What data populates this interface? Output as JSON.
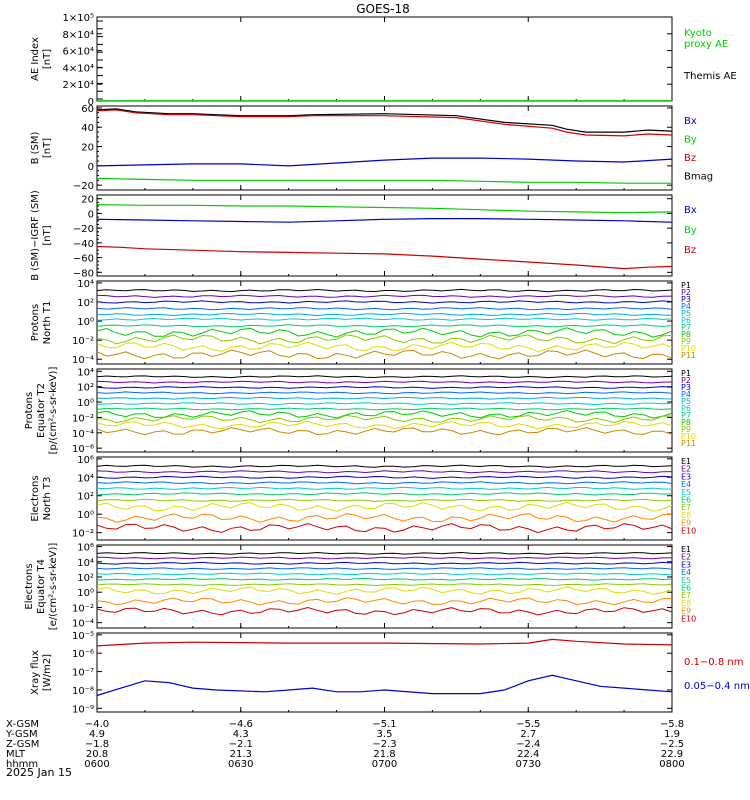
{
  "title": "GOES-18",
  "date_label": "2025 Jan 15",
  "chart_data": [
    {
      "id": "ae",
      "type": "line",
      "ylabel": [
        "AE Index",
        "[nT]"
      ],
      "yticks": [
        "1×10⁵",
        "8×10⁴",
        "6×10⁴",
        "4×10⁴",
        "2×10⁴",
        "0"
      ],
      "ylim": [
        0,
        100000
      ],
      "scale": "linear",
      "legend": [
        {
          "name": "Kyoto",
          "color": "#00cc00"
        },
        {
          "name": "proxy AE",
          "color": "#00cc00"
        },
        {
          "name": "Themis AE",
          "color": "#000000"
        }
      ],
      "series": [
        {
          "name": "Kyoto proxy AE",
          "color": "#00cc00",
          "x": [
            0,
            120
          ],
          "y": [
            300,
            300
          ]
        }
      ]
    },
    {
      "id": "bsm",
      "type": "line",
      "ylabel": [
        "B (SM)",
        "[nT]"
      ],
      "yticks": [
        "60",
        "40",
        "20",
        "0",
        "−20"
      ],
      "ytick_values": [
        60,
        40,
        20,
        0,
        -20
      ],
      "ylim": [
        -25,
        62
      ],
      "scale": "linear",
      "legend": [
        {
          "name": "Bx",
          "color": "#0000cc"
        },
        {
          "name": "By",
          "color": "#00cc00"
        },
        {
          "name": "Bz",
          "color": "#cc0000"
        },
        {
          "name": "Bmag",
          "color": "#000000"
        }
      ],
      "series": [
        {
          "name": "Bmag",
          "color": "#000000",
          "x": [
            0,
            4,
            8,
            15,
            20,
            30,
            40,
            45,
            60,
            75,
            85,
            95,
            98,
            102,
            110,
            115,
            120
          ],
          "y": [
            58,
            59,
            56,
            54,
            54,
            52,
            52,
            53,
            54,
            52,
            45,
            42,
            38,
            35,
            35,
            37,
            36
          ]
        },
        {
          "name": "Bz",
          "color": "#cc0000",
          "x": [
            0,
            4,
            8,
            15,
            20,
            30,
            40,
            45,
            60,
            75,
            85,
            95,
            98,
            102,
            110,
            115,
            120
          ],
          "y": [
            57,
            58,
            55,
            53,
            53,
            51,
            51,
            52,
            52,
            50,
            43,
            39,
            35,
            32,
            31,
            33,
            32
          ]
        },
        {
          "name": "Bx",
          "color": "#0000cc",
          "x": [
            0,
            10,
            20,
            30,
            40,
            50,
            60,
            70,
            80,
            90,
            100,
            110,
            120
          ],
          "y": [
            0,
            1,
            2,
            2,
            0,
            3,
            6,
            8,
            8,
            7,
            5,
            4,
            7
          ]
        },
        {
          "name": "By",
          "color": "#00cc00",
          "x": [
            0,
            10,
            20,
            30,
            40,
            50,
            60,
            70,
            80,
            90,
            100,
            110,
            120
          ],
          "y": [
            -13,
            -14,
            -15,
            -15,
            -15,
            -15,
            -15,
            -15,
            -16,
            -17,
            -17,
            -18,
            -18
          ]
        }
      ]
    },
    {
      "id": "bigrf",
      "type": "line",
      "ylabel": [
        "B (SM)−IGRF (SM)",
        "[nT]"
      ],
      "yticks": [
        "20",
        "0",
        "−20",
        "−40",
        "−60",
        "−80"
      ],
      "ytick_values": [
        20,
        0,
        -20,
        -40,
        -60,
        -80
      ],
      "ylim": [
        -85,
        25
      ],
      "scale": "linear",
      "legend": [
        {
          "name": "Bx",
          "color": "#0000cc"
        },
        {
          "name": "By",
          "color": "#00cc00"
        },
        {
          "name": "Bz",
          "color": "#cc0000"
        }
      ],
      "series": [
        {
          "name": "By",
          "color": "#00cc00",
          "x": [
            0,
            10,
            20,
            30,
            40,
            50,
            60,
            70,
            80,
            90,
            100,
            110,
            120
          ],
          "y": [
            12,
            11,
            11,
            10,
            10,
            9,
            8,
            7,
            5,
            3,
            2,
            1,
            2
          ]
        },
        {
          "name": "Bx",
          "color": "#0000cc",
          "x": [
            0,
            10,
            20,
            30,
            40,
            50,
            60,
            70,
            80,
            90,
            100,
            110,
            120
          ],
          "y": [
            -8,
            -9,
            -10,
            -11,
            -12,
            -10,
            -8,
            -7,
            -7,
            -8,
            -9,
            -10,
            -12
          ]
        },
        {
          "name": "Bz",
          "color": "#cc0000",
          "x": [
            0,
            5,
            10,
            20,
            30,
            40,
            50,
            60,
            70,
            80,
            90,
            100,
            110,
            115,
            120
          ],
          "y": [
            -45,
            -46,
            -48,
            -50,
            -52,
            -53,
            -54,
            -55,
            -58,
            -62,
            -66,
            -70,
            -75,
            -73,
            -72
          ]
        }
      ]
    },
    {
      "id": "pn1",
      "type": "line",
      "ylabel": [
        "Protons",
        "North T1"
      ],
      "yticks": [
        "10⁴",
        "10²",
        "10⁰",
        "10⁻²",
        "10⁻⁴"
      ],
      "ytick_values": [
        4,
        2,
        0,
        -2,
        -4
      ],
      "ylim": [
        -4.5,
        4.2
      ],
      "scale": "log10",
      "legend_labels": [
        "P1",
        "P2",
        "P3",
        "P4",
        "P5",
        "P6",
        "P7",
        "P8",
        "P9",
        "P10",
        "P11"
      ],
      "series_levels": [
        3.2,
        2.6,
        2.0,
        1.3,
        0.7,
        0.2,
        -0.5,
        -1.2,
        -1.9,
        -2.7,
        -3.5
      ],
      "series_colors": [
        "#000000",
        "#6a00a8",
        "#0000cc",
        "#0066ff",
        "#00aadd",
        "#00cccc",
        "#00cc66",
        "#00cc00",
        "#88cc00",
        "#dddd00",
        "#cc8800"
      ]
    },
    {
      "id": "pe2",
      "type": "line",
      "ylabel": [
        "Protons",
        "Equator T2",
        "[p/(cm²-s-sr-keV)]"
      ],
      "yticks": [
        "10⁴",
        "10²",
        "10⁰",
        "10⁻²",
        "10⁻⁴",
        "10⁻⁶"
      ],
      "ytick_values": [
        4,
        2,
        0,
        -2,
        -4,
        -6
      ],
      "ylim": [
        -6.5,
        4.3
      ],
      "scale": "log10",
      "legend_labels": [
        "P1",
        "P2",
        "P3",
        "P4",
        "P5",
        "P6",
        "P7",
        "P8",
        "P9",
        "P10",
        "P11"
      ],
      "series_levels": [
        3.3,
        2.6,
        1.9,
        1.2,
        0.5,
        -0.2,
        -0.9,
        -1.6,
        -2.2,
        -3.0,
        -3.8
      ],
      "series_colors": [
        "#000000",
        "#6a00a8",
        "#0000cc",
        "#0066ff",
        "#00aadd",
        "#00cccc",
        "#00cc66",
        "#00cc00",
        "#88cc00",
        "#dddd00",
        "#cc8800"
      ]
    },
    {
      "id": "en3",
      "type": "line",
      "ylabel": [
        "Electrons",
        "North T3"
      ],
      "yticks": [
        "10⁶",
        "10⁴",
        "10²",
        "10⁰",
        "10⁻²"
      ],
      "ytick_values": [
        6,
        4,
        2,
        0,
        -2
      ],
      "ylim": [
        -2.8,
        6.2
      ],
      "scale": "log10",
      "legend_labels": [
        "E1",
        "E2",
        "E3",
        "E4",
        "E5",
        "E6",
        "E7",
        "E8",
        "E9",
        "E10"
      ],
      "series_levels": [
        5.2,
        4.6,
        4.0,
        3.4,
        2.8,
        2.2,
        1.5,
        0.8,
        -0.4,
        -1.5
      ],
      "series_colors": [
        "#000000",
        "#6a00a8",
        "#0000cc",
        "#0066ff",
        "#00cccc",
        "#00cc66",
        "#88cc00",
        "#dddd00",
        "#ff8800",
        "#cc0000"
      ]
    },
    {
      "id": "ee4",
      "type": "line",
      "ylabel": [
        "Electrons",
        "Equator T4",
        "[e/(cm²-s-sr-keV)]"
      ],
      "yticks": [
        "10⁶",
        "10⁴",
        "10²",
        "10⁰",
        "10⁻²",
        "10⁻⁴"
      ],
      "ytick_values": [
        6,
        4,
        2,
        0,
        -2,
        -4
      ],
      "ylim": [
        -4.7,
        6.2
      ],
      "scale": "log10",
      "legend_labels": [
        "E1",
        "E2",
        "E3",
        "E4",
        "E5",
        "E6",
        "E7",
        "E8",
        "E9",
        "E10"
      ],
      "series_levels": [
        5.1,
        4.5,
        3.8,
        3.1,
        2.4,
        1.7,
        1.0,
        0.2,
        -1.2,
        -2.5
      ],
      "series_colors": [
        "#000000",
        "#6a00a8",
        "#0000cc",
        "#0066ff",
        "#00cccc",
        "#00cc66",
        "#88cc00",
        "#dddd00",
        "#ff8800",
        "#cc0000"
      ]
    },
    {
      "id": "xray",
      "type": "line",
      "ylabel": [
        "Xray flux",
        "[W/m2]"
      ],
      "yticks": [
        "10⁻⁵",
        "10⁻⁶",
        "10⁻⁷",
        "10⁻⁸",
        "10⁻⁹"
      ],
      "ytick_values": [
        -5,
        -6,
        -7,
        -8,
        -9
      ],
      "ylim": [
        -9.2,
        -4.9
      ],
      "scale": "log10",
      "legend": [
        {
          "name": "0.1−0.8 nm",
          "color": "#cc0000"
        },
        {
          "name": "0.05−0.4 nm",
          "color": "#0000cc"
        }
      ],
      "series": [
        {
          "name": "0.1−0.8 nm",
          "color": "#cc0000",
          "x": [
            0,
            10,
            20,
            40,
            60,
            80,
            90,
            95,
            100,
            110,
            120
          ],
          "y": [
            -5.6,
            -5.45,
            -5.4,
            -5.45,
            -5.45,
            -5.5,
            -5.45,
            -5.25,
            -5.35,
            -5.5,
            -5.55
          ]
        },
        {
          "name": "0.05−0.4 nm",
          "color": "#0000cc",
          "x": [
            0,
            5,
            10,
            15,
            20,
            25,
            35,
            40,
            45,
            50,
            55,
            60,
            70,
            80,
            85,
            90,
            95,
            100,
            105,
            110,
            115,
            120
          ],
          "y": [
            -8.3,
            -7.9,
            -7.5,
            -7.6,
            -7.9,
            -8.0,
            -8.1,
            -8.0,
            -7.9,
            -8.1,
            -8.1,
            -8.0,
            -8.2,
            -8.2,
            -8.0,
            -7.5,
            -7.2,
            -7.5,
            -7.8,
            -7.9,
            -8.0,
            -8.1
          ]
        }
      ]
    }
  ],
  "x_axis": {
    "xlim": [
      0,
      120
    ],
    "tick_positions": [
      0,
      30,
      60,
      90,
      120
    ],
    "rows": [
      {
        "label": "X-GSM",
        "values": [
          "−4.0",
          "−4.6",
          "−5.1",
          "−5.5",
          "−5.8"
        ]
      },
      {
        "label": "Y-GSM",
        "values": [
          "4.9",
          "4.3",
          "3.5",
          "2.7",
          "1.9"
        ]
      },
      {
        "label": "Z-GSM",
        "values": [
          "−1.8",
          "−2.1",
          "−2.3",
          "−2.4",
          "−2.5"
        ]
      },
      {
        "label": "MLT",
        "values": [
          "20.8",
          "21.3",
          "21.8",
          "22.4",
          "22.9"
        ]
      },
      {
        "label": "hhmm",
        "values": [
          "0600",
          "0630",
          "0700",
          "0730",
          "0800"
        ]
      }
    ]
  }
}
